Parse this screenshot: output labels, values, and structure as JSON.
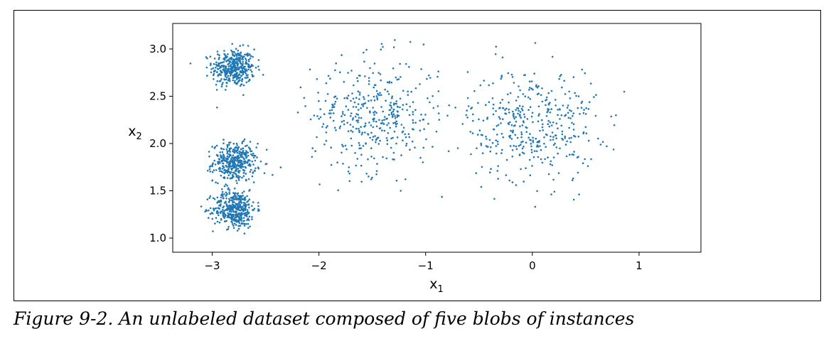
{
  "caption": "Figure 9-2. An unlabeled dataset composed of five blobs of instances",
  "chart_data": {
    "type": "scatter",
    "xlabel": {
      "base": "x",
      "sub": "1"
    },
    "ylabel": {
      "base": "x",
      "sub": "2"
    },
    "xlim": [
      -3.37,
      1.58
    ],
    "ylim": [
      0.85,
      3.27
    ],
    "xticks": [
      -3,
      -2,
      -1,
      0,
      1
    ],
    "xtick_labels": [
      "−3",
      "−2",
      "−1",
      "0",
      "1"
    ],
    "yticks": [
      1.0,
      1.5,
      2.0,
      2.5,
      3.0
    ],
    "ytick_labels": [
      "1.0",
      "1.5",
      "2.0",
      "2.5",
      "3.0"
    ],
    "grid": false,
    "legend": "none",
    "marker_color": "#1f77b4",
    "series": [
      {
        "blobs": [
          {
            "center": [
              -2.8,
              2.8
            ],
            "std": 0.1,
            "count": 400
          },
          {
            "center": [
              -2.79,
              1.8
            ],
            "std": 0.1,
            "count": 400
          },
          {
            "center": [
              -2.79,
              1.31
            ],
            "std": 0.1,
            "count": 400
          },
          {
            "center": [
              -1.47,
              2.3
            ],
            "std": 0.3,
            "count": 400
          },
          {
            "center": [
              0.0,
              2.2
            ],
            "std": 0.3,
            "count": 400
          }
        ]
      }
    ]
  }
}
